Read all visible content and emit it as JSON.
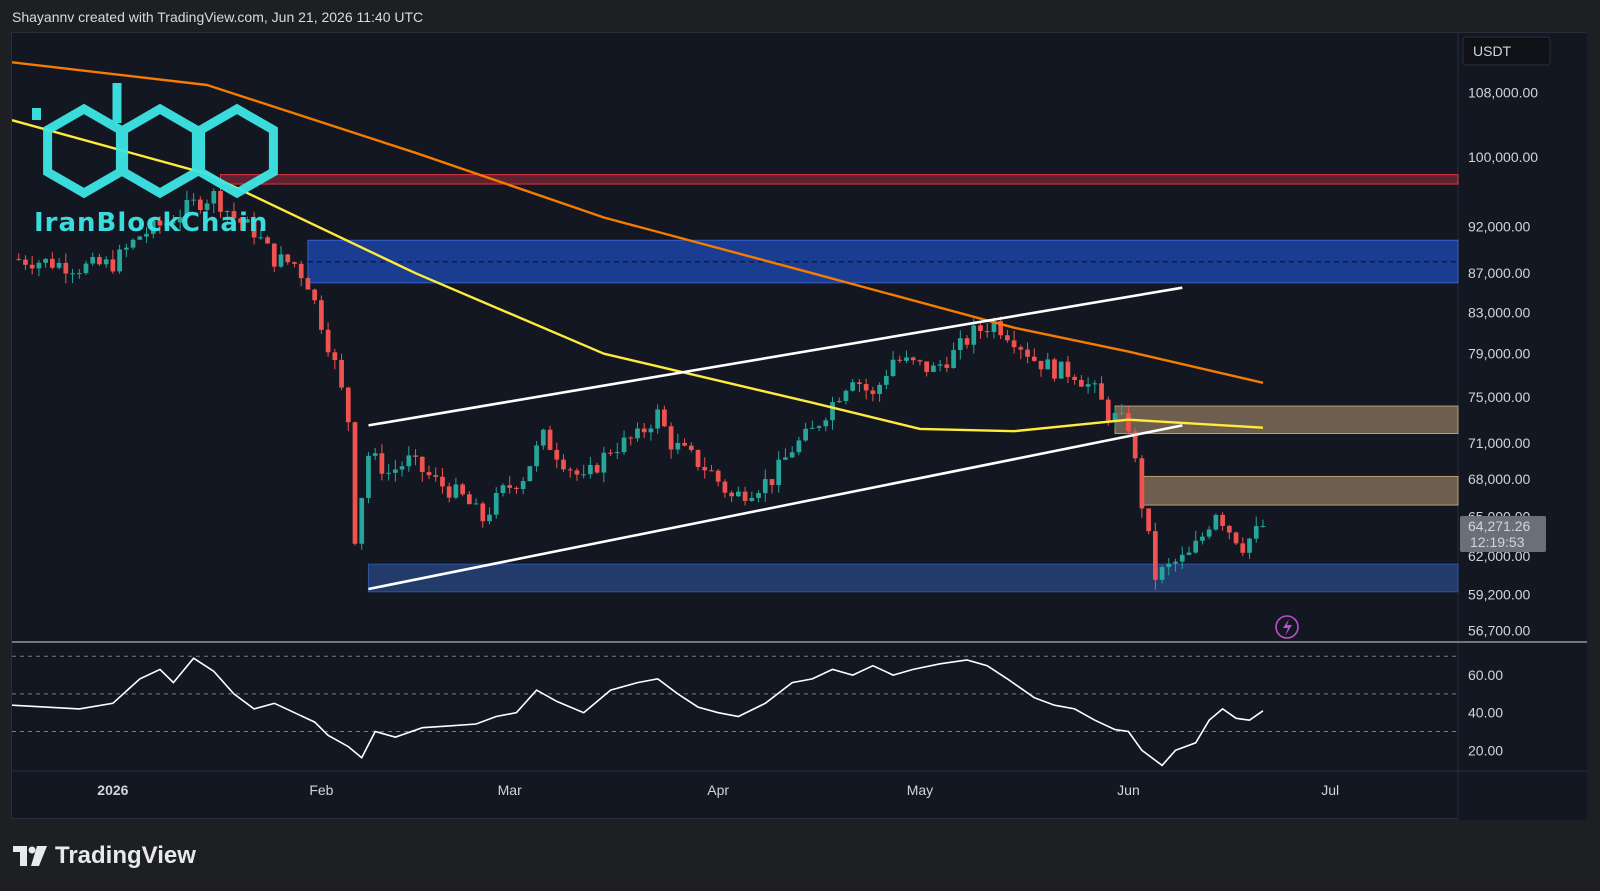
{
  "header": {
    "attribution": "Shayannv created with TradingView.com, Jun 21, 2026 11:40 UTC"
  },
  "watermark": {
    "text": "IranBlockChain",
    "color": "#3ee6e6"
  },
  "footer": {
    "brand": "TradingView"
  },
  "colors": {
    "up": "#26a69a",
    "down": "#ef5350",
    "ma_orange": "#f57c00",
    "ma_yellow": "#ffeb3b",
    "channel": "#ffffff",
    "resistance_red": "#f23645",
    "supply_blue": "#1e4bb8",
    "demand_blue": "#2f5aa8",
    "zone_tan": "#c8a67a",
    "rsi": "#ffffff"
  },
  "chart_data": {
    "type": "candlestick",
    "symbol_currency": "USDT",
    "current_price": "64,271.26",
    "countdown": "12:19:53",
    "y_axis": {
      "scale": "log",
      "range": [
        56000,
        116000
      ],
      "ticks": [
        "108,000.00",
        "100,000.00",
        "92,000.00",
        "87,000.00",
        "83,000.00",
        "79,000.00",
        "75,000.00",
        "71,000.00",
        "68,000.00",
        "65,000.00",
        "62,000.00",
        "59,200.00",
        "56,700.00"
      ],
      "tick_values": [
        108000,
        100000,
        92000,
        87000,
        83000,
        79000,
        75000,
        71000,
        68000,
        65000,
        62000,
        59200,
        56700
      ]
    },
    "x_axis": {
      "labels": [
        {
          "label": "2026",
          "date": "2026-01-01"
        },
        {
          "label": "Feb",
          "date": "2026-02-01"
        },
        {
          "label": "Mar",
          "date": "2026-03-01"
        },
        {
          "label": "Apr",
          "date": "2026-04-01"
        },
        {
          "label": "May",
          "date": "2026-05-01"
        },
        {
          "label": "Jun",
          "date": "2026-06-01"
        },
        {
          "label": "Jul",
          "date": "2026-07-01"
        }
      ],
      "range": [
        "2025-12-17",
        "2026-07-20"
      ]
    },
    "price_closes": [
      {
        "date": "2025-12-17",
        "close": 88500
      },
      {
        "date": "2025-12-22",
        "close": 88200
      },
      {
        "date": "2025-12-27",
        "close": 87600
      },
      {
        "date": "2026-01-01",
        "close": 88000
      },
      {
        "date": "2026-01-05",
        "close": 91000
      },
      {
        "date": "2026-01-09",
        "close": 92500
      },
      {
        "date": "2026-01-13",
        "close": 94500
      },
      {
        "date": "2026-01-16",
        "close": 95500
      },
      {
        "date": "2026-01-19",
        "close": 93000
      },
      {
        "date": "2026-01-22",
        "close": 91500
      },
      {
        "date": "2026-01-25",
        "close": 88500
      },
      {
        "date": "2026-01-28",
        "close": 88000
      },
      {
        "date": "2026-01-30",
        "close": 86000
      },
      {
        "date": "2026-02-01",
        "close": 82000
      },
      {
        "date": "2026-02-03",
        "close": 78000
      },
      {
        "date": "2026-02-05",
        "close": 73000
      },
      {
        "date": "2026-02-06",
        "close": 63500
      },
      {
        "date": "2026-02-08",
        "close": 70000
      },
      {
        "date": "2026-02-11",
        "close": 68500
      },
      {
        "date": "2026-02-14",
        "close": 69500
      },
      {
        "date": "2026-02-18",
        "close": 67800
      },
      {
        "date": "2026-02-22",
        "close": 66500
      },
      {
        "date": "2026-02-25",
        "close": 64800
      },
      {
        "date": "2026-02-28",
        "close": 67000
      },
      {
        "date": "2026-03-03",
        "close": 68200
      },
      {
        "date": "2026-03-06",
        "close": 71500
      },
      {
        "date": "2026-03-09",
        "close": 69500
      },
      {
        "date": "2026-03-12",
        "close": 67800
      },
      {
        "date": "2026-03-16",
        "close": 70500
      },
      {
        "date": "2026-03-20",
        "close": 71500
      },
      {
        "date": "2026-03-23",
        "close": 73500
      },
      {
        "date": "2026-03-25",
        "close": 71000
      },
      {
        "date": "2026-03-28",
        "close": 69800
      },
      {
        "date": "2026-03-31",
        "close": 68500
      },
      {
        "date": "2026-04-03",
        "close": 66500
      },
      {
        "date": "2026-04-06",
        "close": 67200
      },
      {
        "date": "2026-04-09",
        "close": 68000
      },
      {
        "date": "2026-04-12",
        "close": 70500
      },
      {
        "date": "2026-04-15",
        "close": 72000
      },
      {
        "date": "2026-04-18",
        "close": 74500
      },
      {
        "date": "2026-04-21",
        "close": 77000
      },
      {
        "date": "2026-04-24",
        "close": 75000
      },
      {
        "date": "2026-04-27",
        "close": 78500
      },
      {
        "date": "2026-04-30",
        "close": 78000
      },
      {
        "date": "2026-05-03",
        "close": 77500
      },
      {
        "date": "2026-05-06",
        "close": 79000
      },
      {
        "date": "2026-05-09",
        "close": 81000
      },
      {
        "date": "2026-05-12",
        "close": 82000
      },
      {
        "date": "2026-05-15",
        "close": 80500
      },
      {
        "date": "2026-05-18",
        "close": 78500
      },
      {
        "date": "2026-05-21",
        "close": 77500
      },
      {
        "date": "2026-05-24",
        "close": 77200
      },
      {
        "date": "2026-05-27",
        "close": 75500
      },
      {
        "date": "2026-05-29",
        "close": 73500
      },
      {
        "date": "2026-06-01",
        "close": 72500
      },
      {
        "date": "2026-06-03",
        "close": 66000
      },
      {
        "date": "2026-06-05",
        "close": 60500
      },
      {
        "date": "2026-06-08",
        "close": 61500
      },
      {
        "date": "2026-06-10",
        "close": 62000
      },
      {
        "date": "2026-06-12",
        "close": 63500
      },
      {
        "date": "2026-06-14",
        "close": 65500
      },
      {
        "date": "2026-06-16",
        "close": 64000
      },
      {
        "date": "2026-06-18",
        "close": 62800
      },
      {
        "date": "2026-06-21",
        "close": 64271
      }
    ],
    "ma_orange": [
      {
        "date": "2025-12-17",
        "value": 112000
      },
      {
        "date": "2026-01-15",
        "value": 109000
      },
      {
        "date": "2026-02-15",
        "value": 100500
      },
      {
        "date": "2026-03-15",
        "value": 93000
      },
      {
        "date": "2026-04-15",
        "value": 87000
      },
      {
        "date": "2026-05-15",
        "value": 81500
      },
      {
        "date": "2026-06-01",
        "value": 79200
      },
      {
        "date": "2026-06-21",
        "value": 76300
      }
    ],
    "ma_yellow": [
      {
        "date": "2025-12-17",
        "value": 104500
      },
      {
        "date": "2026-01-15",
        "value": 98000
      },
      {
        "date": "2026-02-15",
        "value": 87000
      },
      {
        "date": "2026-03-15",
        "value": 79000
      },
      {
        "date": "2026-04-15",
        "value": 74500
      },
      {
        "date": "2026-05-01",
        "value": 72200
      },
      {
        "date": "2026-05-15",
        "value": 72000
      },
      {
        "date": "2026-06-01",
        "value": 73000
      },
      {
        "date": "2026-06-21",
        "value": 72300
      }
    ],
    "channel_upper": [
      {
        "date": "2026-02-08",
        "value": 72500
      },
      {
        "date": "2026-06-09",
        "value": 85500
      }
    ],
    "channel_lower": [
      {
        "date": "2026-02-08",
        "value": 59600
      },
      {
        "date": "2026-06-09",
        "value": 72500
      }
    ],
    "zones": [
      {
        "name": "resistance-line",
        "low": 96800,
        "high": 97900,
        "from": "2026-01-17",
        "to": "2026-07-20",
        "color": "#f23645"
      },
      {
        "name": "supply-blue",
        "low": 86000,
        "high": 90500,
        "from": "2026-01-30",
        "to": "2026-07-20",
        "color": "#1e4bb8"
      },
      {
        "name": "tan-upper",
        "low": 71800,
        "high": 74200,
        "from": "2026-05-30",
        "to": "2026-07-20",
        "color": "#c8a67a"
      },
      {
        "name": "tan-lower",
        "low": 65900,
        "high": 68200,
        "from": "2026-06-03",
        "to": "2026-07-20",
        "color": "#c8a67a"
      },
      {
        "name": "demand-blue",
        "low": 59400,
        "high": 61400,
        "from": "2026-02-08",
        "to": "2026-07-20",
        "color": "#2f5aa8"
      }
    ],
    "supply_midline": 88200,
    "rsi": {
      "ticks": [
        "60.00",
        "40.00",
        "20.00"
      ],
      "tick_values": [
        60,
        40,
        20
      ],
      "range": [
        9,
        76
      ],
      "levels": [
        70,
        50,
        30
      ],
      "values": [
        {
          "date": "2025-12-17",
          "v": 44
        },
        {
          "date": "2025-12-22",
          "v": 43
        },
        {
          "date": "2025-12-27",
          "v": 42
        },
        {
          "date": "2026-01-01",
          "v": 45
        },
        {
          "date": "2026-01-05",
          "v": 58
        },
        {
          "date": "2026-01-08",
          "v": 63
        },
        {
          "date": "2026-01-10",
          "v": 56
        },
        {
          "date": "2026-01-13",
          "v": 69
        },
        {
          "date": "2026-01-16",
          "v": 62
        },
        {
          "date": "2026-01-19",
          "v": 50
        },
        {
          "date": "2026-01-22",
          "v": 42
        },
        {
          "date": "2026-01-25",
          "v": 45
        },
        {
          "date": "2026-01-28",
          "v": 40
        },
        {
          "date": "2026-01-31",
          "v": 35
        },
        {
          "date": "2026-02-02",
          "v": 28
        },
        {
          "date": "2026-02-05",
          "v": 22
        },
        {
          "date": "2026-02-07",
          "v": 16
        },
        {
          "date": "2026-02-09",
          "v": 30
        },
        {
          "date": "2026-02-12",
          "v": 27
        },
        {
          "date": "2026-02-16",
          "v": 32
        },
        {
          "date": "2026-02-20",
          "v": 33
        },
        {
          "date": "2026-02-24",
          "v": 34
        },
        {
          "date": "2026-02-27",
          "v": 38
        },
        {
          "date": "2026-03-02",
          "v": 40
        },
        {
          "date": "2026-03-05",
          "v": 52
        },
        {
          "date": "2026-03-08",
          "v": 46
        },
        {
          "date": "2026-03-12",
          "v": 40
        },
        {
          "date": "2026-03-16",
          "v": 52
        },
        {
          "date": "2026-03-20",
          "v": 56
        },
        {
          "date": "2026-03-23",
          "v": 58
        },
        {
          "date": "2026-03-26",
          "v": 50
        },
        {
          "date": "2026-03-29",
          "v": 43
        },
        {
          "date": "2026-04-01",
          "v": 40
        },
        {
          "date": "2026-04-04",
          "v": 38
        },
        {
          "date": "2026-04-08",
          "v": 45
        },
        {
          "date": "2026-04-12",
          "v": 56
        },
        {
          "date": "2026-04-15",
          "v": 58
        },
        {
          "date": "2026-04-18",
          "v": 63
        },
        {
          "date": "2026-04-21",
          "v": 60
        },
        {
          "date": "2026-04-24",
          "v": 65
        },
        {
          "date": "2026-04-27",
          "v": 60
        },
        {
          "date": "2026-04-30",
          "v": 63
        },
        {
          "date": "2026-05-04",
          "v": 66
        },
        {
          "date": "2026-05-08",
          "v": 68
        },
        {
          "date": "2026-05-11",
          "v": 65
        },
        {
          "date": "2026-05-14",
          "v": 58
        },
        {
          "date": "2026-05-18",
          "v": 48
        },
        {
          "date": "2026-05-21",
          "v": 44
        },
        {
          "date": "2026-05-24",
          "v": 42
        },
        {
          "date": "2026-05-27",
          "v": 36
        },
        {
          "date": "2026-05-30",
          "v": 31
        },
        {
          "date": "2026-06-01",
          "v": 30
        },
        {
          "date": "2026-06-03",
          "v": 20
        },
        {
          "date": "2026-06-06",
          "v": 12
        },
        {
          "date": "2026-06-08",
          "v": 20
        },
        {
          "date": "2026-06-11",
          "v": 24
        },
        {
          "date": "2026-06-13",
          "v": 36
        },
        {
          "date": "2026-06-15",
          "v": 42
        },
        {
          "date": "2026-06-17",
          "v": 37
        },
        {
          "date": "2026-06-19",
          "v": 36
        },
        {
          "date": "2026-06-21",
          "v": 41
        }
      ]
    }
  }
}
